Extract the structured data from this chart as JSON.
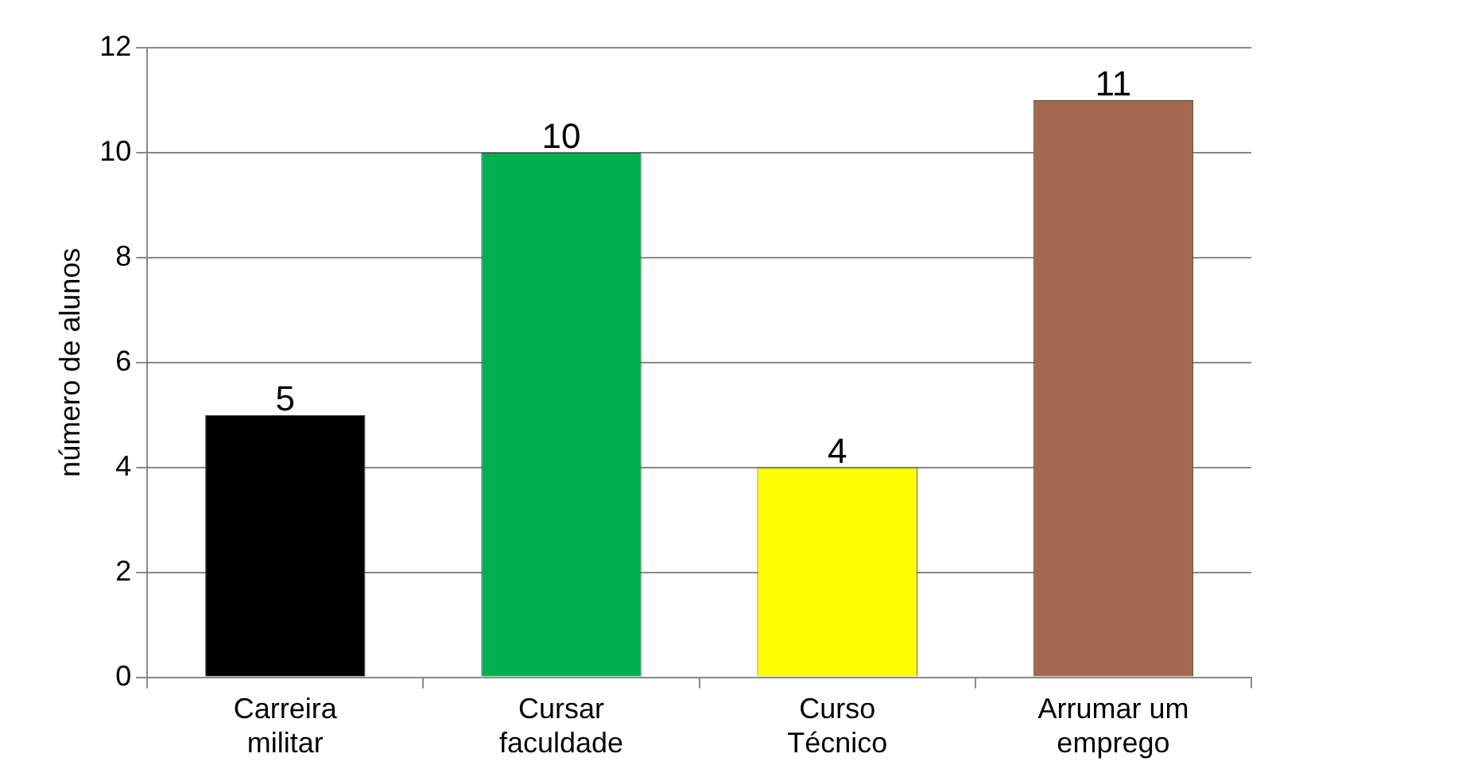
{
  "chart_data": {
    "type": "bar",
    "ylabel": "número de alunos",
    "categories": [
      "Carreira militar",
      "Cursar faculdade",
      "Curso Técnico",
      "Arrumar um emprego"
    ],
    "values": [
      5,
      10,
      4,
      11
    ],
    "colors": [
      "#000000",
      "#00b050",
      "#ffff00",
      "#a5694f"
    ],
    "ylim": [
      0,
      12
    ],
    "yticks": [
      0,
      2,
      4,
      6,
      8,
      10,
      12
    ],
    "grid": "y",
    "data_labels": true,
    "legend": false
  }
}
